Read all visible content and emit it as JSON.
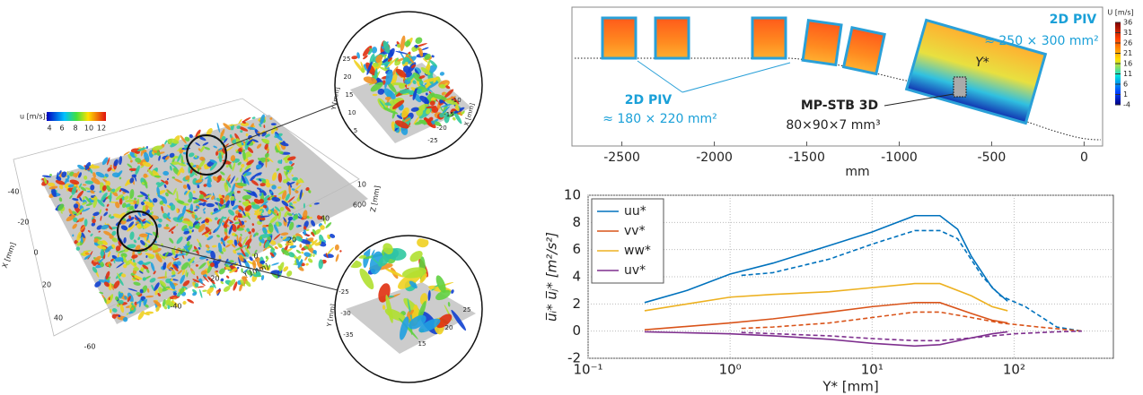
{
  "chart_data": [
    {
      "type": "line",
      "log_x": true,
      "grid": true,
      "legend": "upper-left",
      "xlabel": "Y* [mm]",
      "ylabel": "u̅ᵢ* u̅ⱼ* [m²/s²]",
      "xlim": [
        0.1,
        500
      ],
      "ylim": [
        -2,
        10
      ],
      "xticks": [
        {
          "value": 0.1,
          "label": "10⁻¹"
        },
        {
          "value": 1,
          "label": "10⁰"
        },
        {
          "value": 10,
          "label": "10¹"
        },
        {
          "value": 100,
          "label": "10²"
        }
      ],
      "yticks": [
        -2,
        0,
        2,
        4,
        6,
        8,
        10
      ],
      "series": [
        {
          "name": "uu*",
          "color": "#0072bd",
          "x": [
            0.25,
            0.5,
            1,
            2,
            5,
            10,
            20,
            30,
            40,
            50,
            70,
            90
          ],
          "values": [
            2.1,
            3.0,
            4.2,
            5.0,
            6.3,
            7.3,
            8.5,
            8.5,
            7.5,
            5.5,
            3.2,
            2.2
          ]
        },
        {
          "name": "vv*",
          "color": "#d95319",
          "x": [
            0.25,
            1,
            2,
            5,
            10,
            20,
            30,
            50,
            70,
            90
          ],
          "values": [
            0.1,
            0.6,
            0.9,
            1.4,
            1.8,
            2.1,
            2.1,
            1.3,
            0.8,
            0.6
          ]
        },
        {
          "name": "ww*",
          "color": "#edb120",
          "x": [
            0.25,
            0.5,
            1,
            2,
            5,
            10,
            20,
            30,
            50,
            70,
            90
          ],
          "values": [
            1.5,
            2.0,
            2.5,
            2.7,
            2.9,
            3.2,
            3.5,
            3.5,
            2.6,
            1.8,
            1.5
          ]
        },
        {
          "name": "uv*",
          "color": "#7e2f8e",
          "x": [
            0.25,
            1,
            2,
            5,
            10,
            20,
            30,
            50,
            70,
            90
          ],
          "values": [
            -0.05,
            -0.2,
            -0.35,
            -0.6,
            -0.9,
            -1.1,
            -1.0,
            -0.5,
            -0.2,
            -0.05
          ]
        },
        {
          "color": "#0072bd",
          "dashed": true,
          "x": [
            1.2,
            2,
            5,
            10,
            20,
            30,
            40,
            60,
            80,
            120,
            200,
            300
          ],
          "values": [
            4.1,
            4.3,
            5.3,
            6.4,
            7.4,
            7.4,
            6.8,
            4.0,
            2.6,
            1.8,
            0.3,
            0.0
          ]
        },
        {
          "color": "#d95319",
          "dashed": true,
          "x": [
            1.2,
            2,
            5,
            10,
            20,
            30,
            50,
            80,
            150,
            300
          ],
          "values": [
            0.2,
            0.3,
            0.6,
            1.0,
            1.4,
            1.4,
            1.0,
            0.6,
            0.3,
            0.0
          ]
        },
        {
          "color": "#7e2f8e",
          "dashed": true,
          "x": [
            1.2,
            5,
            10,
            20,
            30,
            50,
            100,
            200,
            300
          ],
          "values": [
            -0.1,
            -0.35,
            -0.55,
            -0.7,
            -0.7,
            -0.5,
            -0.2,
            -0.05,
            0
          ]
        }
      ]
    },
    {
      "type": "schematic",
      "xlabel": "mm",
      "xlim": [
        -2770,
        100
      ],
      "xticks": [
        -2500,
        -2000,
        -1500,
        -1000,
        -500,
        0
      ],
      "colorbar": {
        "label": "U [m/s]",
        "lim": [
          -4,
          36
        ],
        "ticks": [
          36,
          31,
          26,
          21,
          16,
          11,
          6,
          1,
          -4
        ]
      },
      "annotations": [
        "2D PIV",
        "≈ 250 × 300 mm²",
        "2D PIV",
        "≈ 180 × 220 mm²",
        "MP-STB 3D",
        "80×90×7 mm³",
        "Y*"
      ]
    }
  ],
  "scene3d": {
    "colorbar_label": "u [m/s]:",
    "colorbar_ticks": [
      4,
      6,
      8,
      10,
      12
    ],
    "x_label": "X [mm]",
    "x_ticks": [
      -40,
      -20,
      0,
      20,
      40
    ],
    "y_label": "Y [mm]",
    "y_ticks": [
      -60,
      -40,
      -20,
      0,
      20,
      40,
      60
    ],
    "z_label": "Z [mm]",
    "z_ticks": [
      0,
      10
    ],
    "inset_top": {
      "y_label": "Y [mm]",
      "y_ticks": [
        25,
        20,
        15,
        10,
        5
      ],
      "x_label": "X [mm]",
      "x_ticks": [
        -10,
        -15,
        -20,
        -25
      ]
    },
    "inset_bottom": {
      "y_label": "Y [mm]",
      "y_ticks": [
        -25,
        -30,
        -35
      ],
      "x_ticks": [
        15,
        20,
        25
      ]
    }
  }
}
